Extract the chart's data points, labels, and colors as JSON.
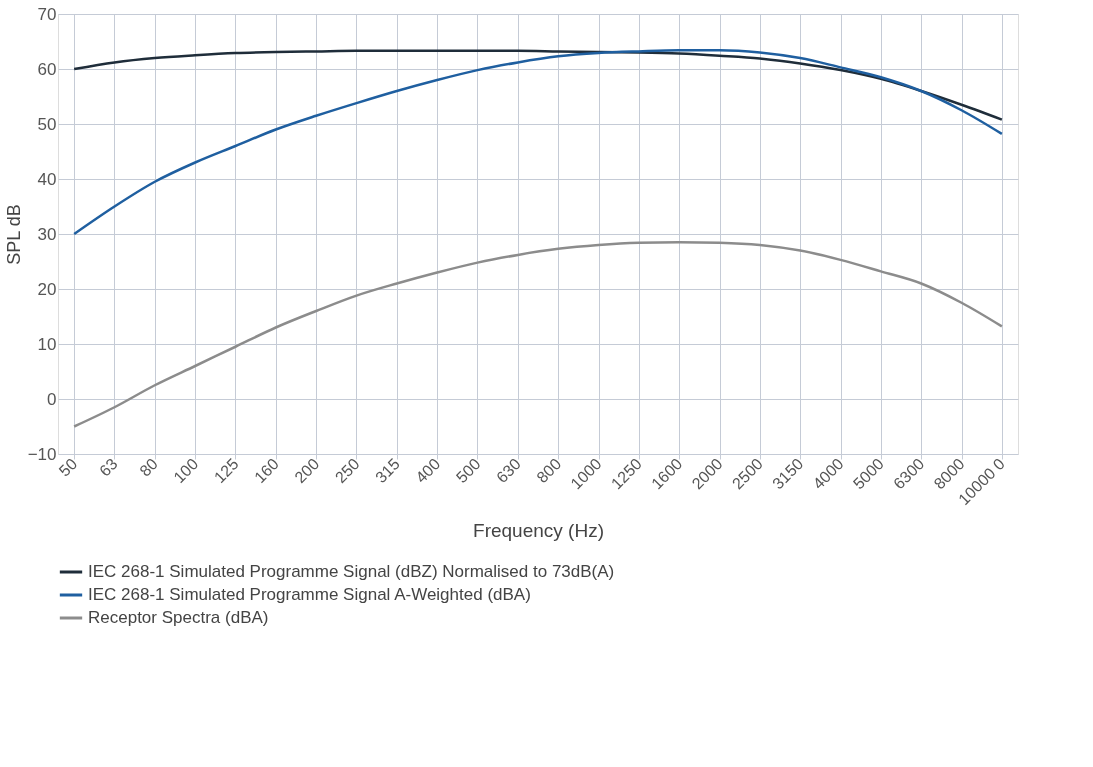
{
  "chart_data": {
    "type": "line",
    "xlabel": "Frequency (Hz)",
    "ylabel": "SPL dB",
    "categories": [
      "50",
      "63",
      "80",
      "100",
      "125",
      "160",
      "200",
      "250",
      "315",
      "400",
      "500",
      "630",
      "800",
      "1000",
      "1250",
      "1600",
      "2000",
      "2500",
      "3150",
      "4000",
      "5000",
      "6300",
      "8000",
      "10000 0"
    ],
    "series": [
      {
        "name": "IEC 268-1 Simulated Programme Signal (dBZ) Normalised to 73dB(A)",
        "color": "#1f2d3a",
        "values": [
          60,
          61.2,
          62,
          62.5,
          62.9,
          63.1,
          63.2,
          63.3,
          63.3,
          63.3,
          63.3,
          63.3,
          63.2,
          63.1,
          63,
          62.8,
          62.4,
          61.9,
          61,
          59.8,
          58.2,
          56,
          53.5,
          50.8
        ]
      },
      {
        "name": "IEC 268-1 Simulated Programme Signal A-Weighted (dBA)",
        "color": "#1f5fa0",
        "values": [
          30,
          35,
          39.5,
          43,
          46,
          49,
          51.5,
          53.8,
          56,
          58,
          59.8,
          61.2,
          62.3,
          62.9,
          63.2,
          63.4,
          63.4,
          63,
          62,
          60.3,
          58.5,
          56,
          52.5,
          48.2
        ]
      },
      {
        "name": "Receptor Spectra (dBA)",
        "color": "#8c8c8c",
        "values": [
          -5,
          -1.5,
          2.5,
          6,
          9.5,
          13,
          16,
          18.8,
          21,
          23,
          24.8,
          26.2,
          27.3,
          28,
          28.4,
          28.5,
          28.4,
          28,
          27,
          25.3,
          23.2,
          21,
          17.5,
          13.2
        ]
      }
    ],
    "ylim": [
      -10,
      70
    ],
    "yticks": [
      -10,
      0,
      10,
      20,
      30,
      40,
      50,
      60,
      70
    ],
    "grid": true,
    "legend": "bottom",
    "marker": "none",
    "line_style": "solid"
  }
}
